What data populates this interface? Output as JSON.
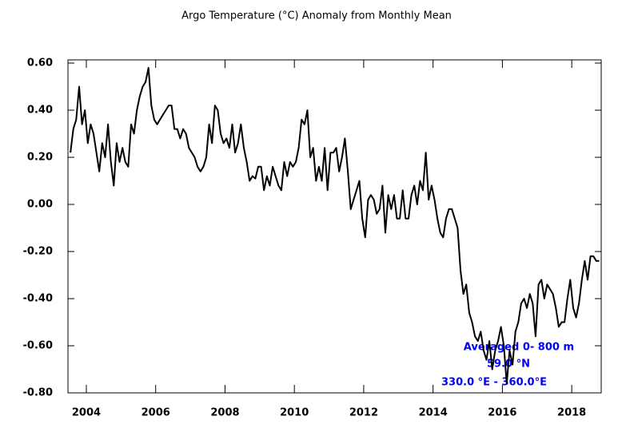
{
  "chart_data": {
    "type": "line",
    "title": "Argo Temperature (°C) Anomaly from Monthly Mean",
    "annotations": [
      "Averaged 0- 800 m",
      "59.0 °N",
      "330.0 °E - 360.0°E"
    ],
    "xlim": [
      2003.47,
      2018.85
    ],
    "ylim": [
      -0.8,
      0.6
    ],
    "xticks": [
      2004,
      2006,
      2008,
      2010,
      2012,
      2014,
      2016,
      2018
    ],
    "yticks": [
      {
        "value": 0.6,
        "label": "0.60"
      },
      {
        "value": 0.4,
        "label": "0.40"
      },
      {
        "value": 0.2,
        "label": "0.20"
      },
      {
        "value": 0,
        "label": "0.00"
      },
      {
        "value": -0.2,
        "label": "-0.20"
      },
      {
        "value": -0.4,
        "label": "-0.40"
      },
      {
        "value": -0.6,
        "label": "-0.60"
      },
      {
        "value": -0.8,
        "label": "-0.80"
      }
    ],
    "x": [
      2003.542,
      2003.625,
      2003.708,
      2003.792,
      2003.875,
      2003.958,
      2004.042,
      2004.125,
      2004.208,
      2004.292,
      2004.375,
      2004.458,
      2004.542,
      2004.625,
      2004.708,
      2004.792,
      2004.875,
      2004.958,
      2005.042,
      2005.125,
      2005.208,
      2005.292,
      2005.375,
      2005.458,
      2005.542,
      2005.625,
      2005.708,
      2005.792,
      2005.875,
      2005.958,
      2006.042,
      2006.125,
      2006.208,
      2006.292,
      2006.375,
      2006.458,
      2006.542,
      2006.625,
      2006.708,
      2006.792,
      2006.875,
      2006.958,
      2007.042,
      2007.125,
      2007.208,
      2007.292,
      2007.375,
      2007.458,
      2007.542,
      2007.625,
      2007.708,
      2007.792,
      2007.875,
      2007.958,
      2008.042,
      2008.125,
      2008.208,
      2008.292,
      2008.375,
      2008.458,
      2008.542,
      2008.625,
      2008.708,
      2008.792,
      2008.875,
      2008.958,
      2009.042,
      2009.125,
      2009.208,
      2009.292,
      2009.375,
      2009.458,
      2009.542,
      2009.625,
      2009.708,
      2009.792,
      2009.875,
      2009.958,
      2010.042,
      2010.125,
      2010.208,
      2010.292,
      2010.375,
      2010.458,
      2010.542,
      2010.625,
      2010.708,
      2010.792,
      2010.875,
      2010.958,
      2011.042,
      2011.125,
      2011.208,
      2011.292,
      2011.375,
      2011.458,
      2011.542,
      2011.625,
      2011.708,
      2011.792,
      2011.875,
      2011.958,
      2012.042,
      2012.125,
      2012.208,
      2012.292,
      2012.375,
      2012.458,
      2012.542,
      2012.625,
      2012.708,
      2012.792,
      2012.875,
      2012.958,
      2013.042,
      2013.125,
      2013.208,
      2013.292,
      2013.375,
      2013.458,
      2013.542,
      2013.625,
      2013.708,
      2013.792,
      2013.875,
      2013.958,
      2014.042,
      2014.125,
      2014.208,
      2014.292,
      2014.375,
      2014.458,
      2014.542,
      2014.625,
      2014.708,
      2014.792,
      2014.875,
      2014.958,
      2015.042,
      2015.125,
      2015.208,
      2015.292,
      2015.375,
      2015.458,
      2015.542,
      2015.625,
      2015.708,
      2015.792,
      2015.875,
      2015.958,
      2016.042,
      2016.125,
      2016.208,
      2016.292,
      2016.375,
      2016.458,
      2016.542,
      2016.625,
      2016.708,
      2016.792,
      2016.875,
      2016.958,
      2017.042,
      2017.125,
      2017.208,
      2017.292,
      2017.375,
      2017.458,
      2017.542,
      2017.625,
      2017.708,
      2017.792,
      2017.875,
      2017.958,
      2018.042,
      2018.125,
      2018.208,
      2018.292,
      2018.375,
      2018.458,
      2018.542,
      2018.625,
      2018.708,
      2018.792
    ],
    "series": [
      {
        "color": "#000000",
        "values": [
          0.22,
          0.32,
          0.36,
          0.5,
          0.34,
          0.4,
          0.26,
          0.34,
          0.3,
          0.22,
          0.14,
          0.26,
          0.2,
          0.34,
          0.18,
          0.08,
          0.26,
          0.18,
          0.24,
          0.18,
          0.16,
          0.34,
          0.3,
          0.4,
          0.46,
          0.5,
          0.52,
          0.58,
          0.42,
          0.36,
          0.34,
          0.36,
          0.38,
          0.4,
          0.42,
          0.42,
          0.32,
          0.32,
          0.28,
          0.32,
          0.3,
          0.24,
          0.22,
          0.2,
          0.16,
          0.14,
          0.16,
          0.2,
          0.34,
          0.26,
          0.42,
          0.4,
          0.3,
          0.26,
          0.28,
          0.24,
          0.34,
          0.22,
          0.26,
          0.34,
          0.24,
          0.18,
          0.1,
          0.12,
          0.11,
          0.16,
          0.16,
          0.06,
          0.12,
          0.08,
          0.16,
          0.12,
          0.08,
          0.06,
          0.18,
          0.12,
          0.18,
          0.16,
          0.18,
          0.24,
          0.36,
          0.34,
          0.4,
          0.2,
          0.24,
          0.1,
          0.16,
          0.1,
          0.24,
          0.06,
          0.22,
          0.22,
          0.24,
          0.14,
          0.2,
          0.28,
          0.14,
          -0.02,
          0.02,
          0.06,
          0.1,
          -0.06,
          -0.14,
          0.02,
          0.04,
          0.02,
          -0.04,
          -0.02,
          0.08,
          -0.12,
          0.04,
          -0.02,
          0.04,
          -0.06,
          -0.06,
          0.06,
          -0.06,
          -0.06,
          0.04,
          0.08,
          0.0,
          0.1,
          0.06,
          0.22,
          0.02,
          0.08,
          0.02,
          -0.06,
          -0.12,
          -0.14,
          -0.06,
          -0.02,
          -0.02,
          -0.06,
          -0.1,
          -0.28,
          -0.38,
          -0.34,
          -0.46,
          -0.5,
          -0.56,
          -0.58,
          -0.54,
          -0.62,
          -0.66,
          -0.58,
          -0.7,
          -0.62,
          -0.58,
          -0.52,
          -0.6,
          -0.76,
          -0.62,
          -0.68,
          -0.54,
          -0.5,
          -0.42,
          -0.4,
          -0.44,
          -0.38,
          -0.42,
          -0.56,
          -0.34,
          -0.32,
          -0.4,
          -0.34,
          -0.36,
          -0.38,
          -0.44,
          -0.52,
          -0.5,
          -0.5,
          -0.4,
          -0.32,
          -0.44,
          -0.48,
          -0.42,
          -0.32,
          -0.24,
          -0.32,
          -0.22,
          -0.22,
          -0.24,
          -0.24
        ]
      }
    ]
  }
}
